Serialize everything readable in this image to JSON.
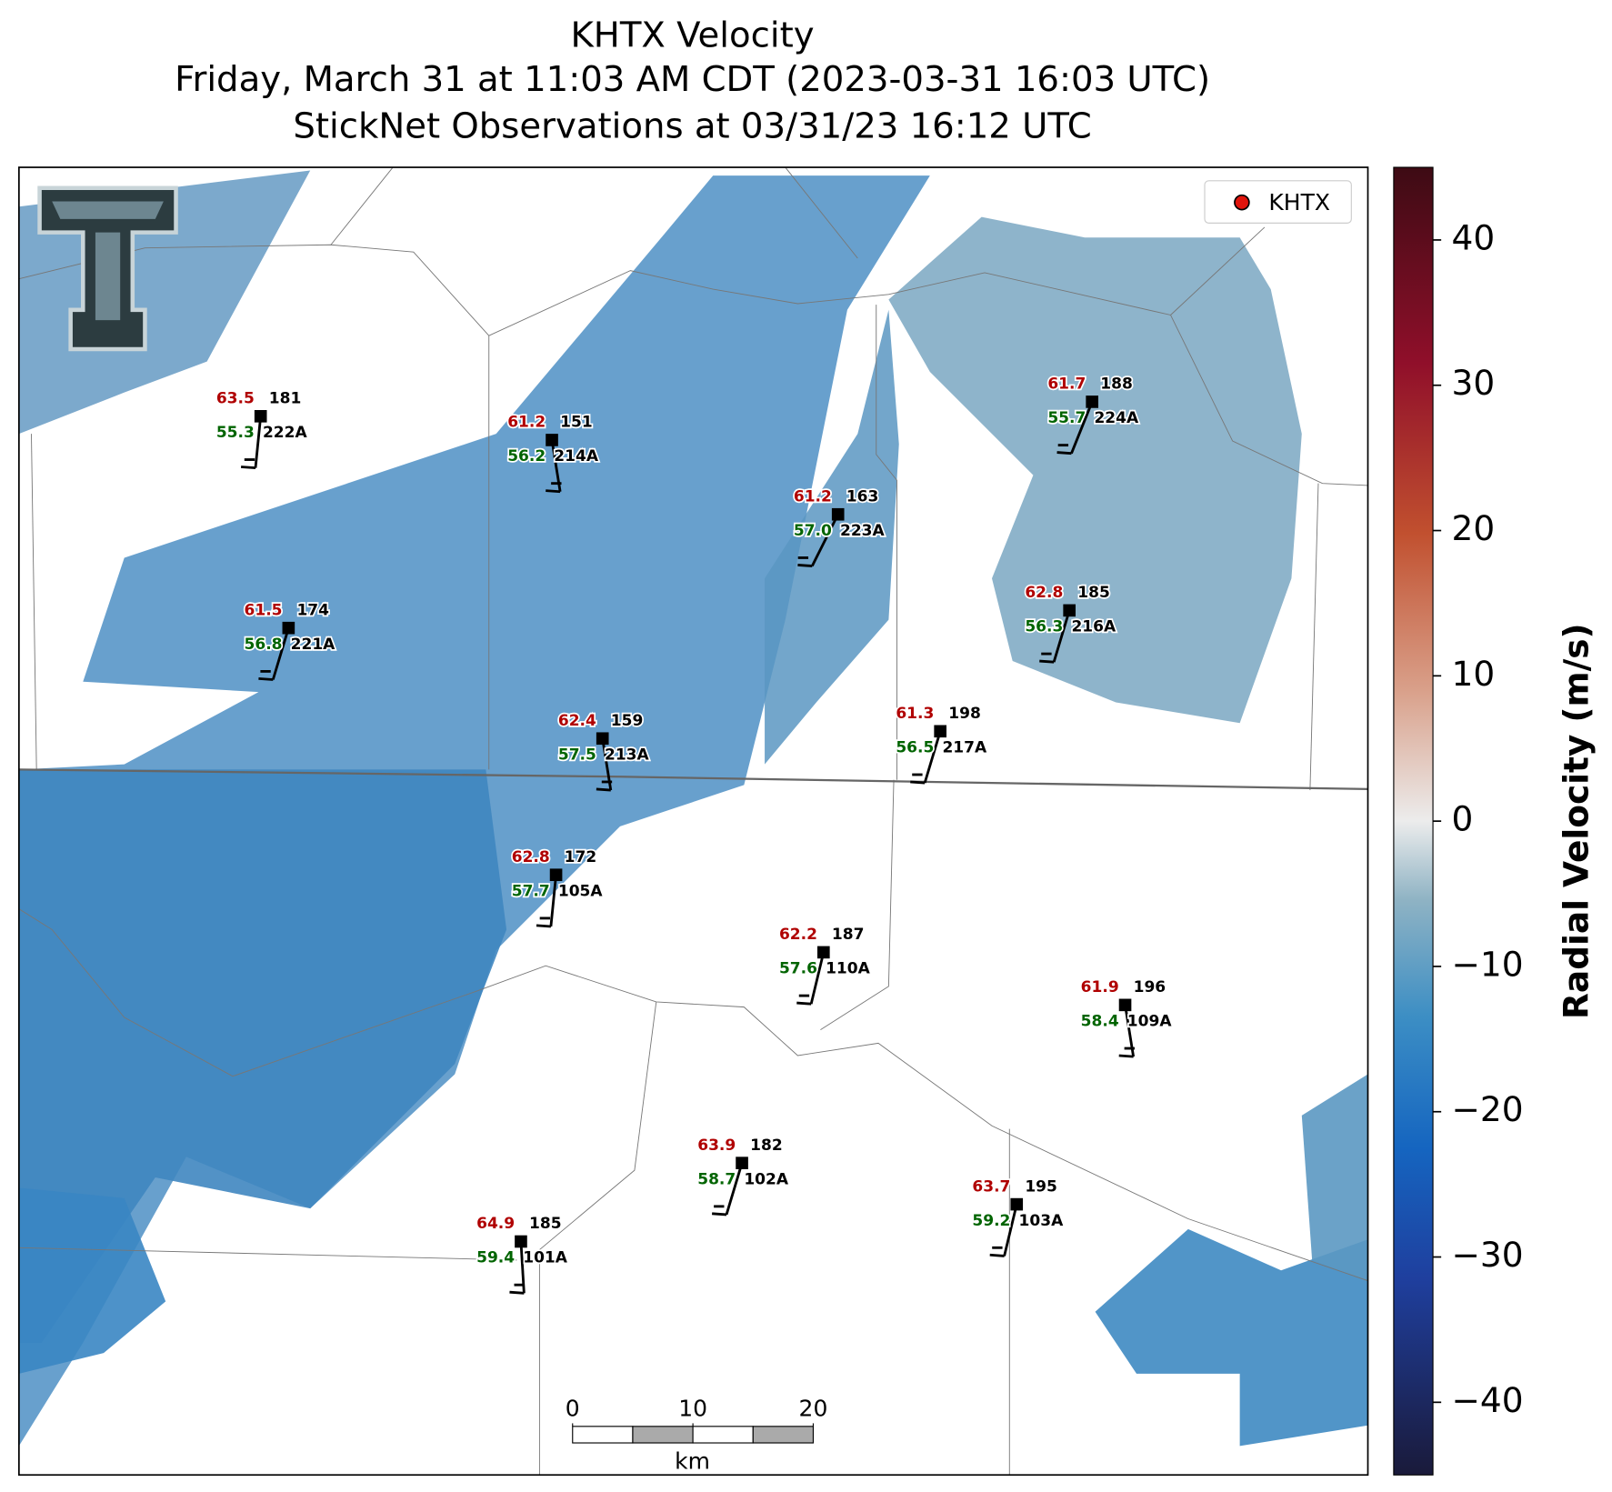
{
  "title": [
    "KHTX Velocity",
    "Friday, March 31 at 11:03 AM CDT (2023-03-31 16:03 UTC)",
    "StickNet Observations at 03/31/23 16:12 UTC"
  ],
  "legend": "KHTX",
  "stations": [
    {
      "temp": 63.5,
      "dewpoint": 55.3,
      "code": "181",
      "id": "222A"
    },
    {
      "temp": 61.2,
      "dewpoint": 56.2,
      "code": "151",
      "id": "214A"
    },
    {
      "temp": 61.2,
      "dewpoint": 57.0,
      "dewpoint_label": "57.0",
      "code": "163",
      "id": "223A"
    },
    {
      "temp": 61.7,
      "dewpoint": 55.7,
      "code": "188",
      "id": "224A"
    },
    {
      "temp": 61.5,
      "dewpoint": 56.8,
      "code": "174",
      "id": "221A"
    },
    {
      "temp": 62.8,
      "dewpoint": 56.3,
      "code": "185",
      "id": "216A"
    },
    {
      "temp": 62.4,
      "dewpoint": 57.5,
      "code": "159",
      "id": "213A"
    },
    {
      "temp": 61.3,
      "dewpoint": 56.5,
      "code": "198",
      "id": "217A"
    },
    {
      "temp": 62.8,
      "dewpoint": 57.7,
      "code": "172",
      "id": "105A"
    },
    {
      "temp": 62.2,
      "dewpoint": 57.6,
      "code": "187",
      "id": "110A"
    },
    {
      "temp": 61.9,
      "dewpoint": 58.4,
      "code": "196",
      "id": "109A"
    },
    {
      "temp": 63.9,
      "dewpoint": 58.7,
      "code": "182",
      "id": "102A"
    },
    {
      "temp": 63.7,
      "dewpoint": 59.2,
      "code": "195",
      "id": "103A"
    },
    {
      "temp": 64.9,
      "dewpoint": 59.4,
      "code": "185",
      "id": "101A"
    }
  ],
  "colorbar": {
    "label": "Radial Velocity (m/s)",
    "lim": [
      -45,
      45
    ],
    "ticks": [
      {
        "value": -40,
        "label": "−40"
      },
      {
        "value": -30,
        "label": "−30"
      },
      {
        "value": -20,
        "label": "−20"
      },
      {
        "value": -10,
        "label": "−10"
      },
      0,
      10,
      20,
      30,
      40
    ]
  },
  "scalebar": {
    "ticks": [
      0,
      10,
      20
    ],
    "unit": "km"
  }
}
